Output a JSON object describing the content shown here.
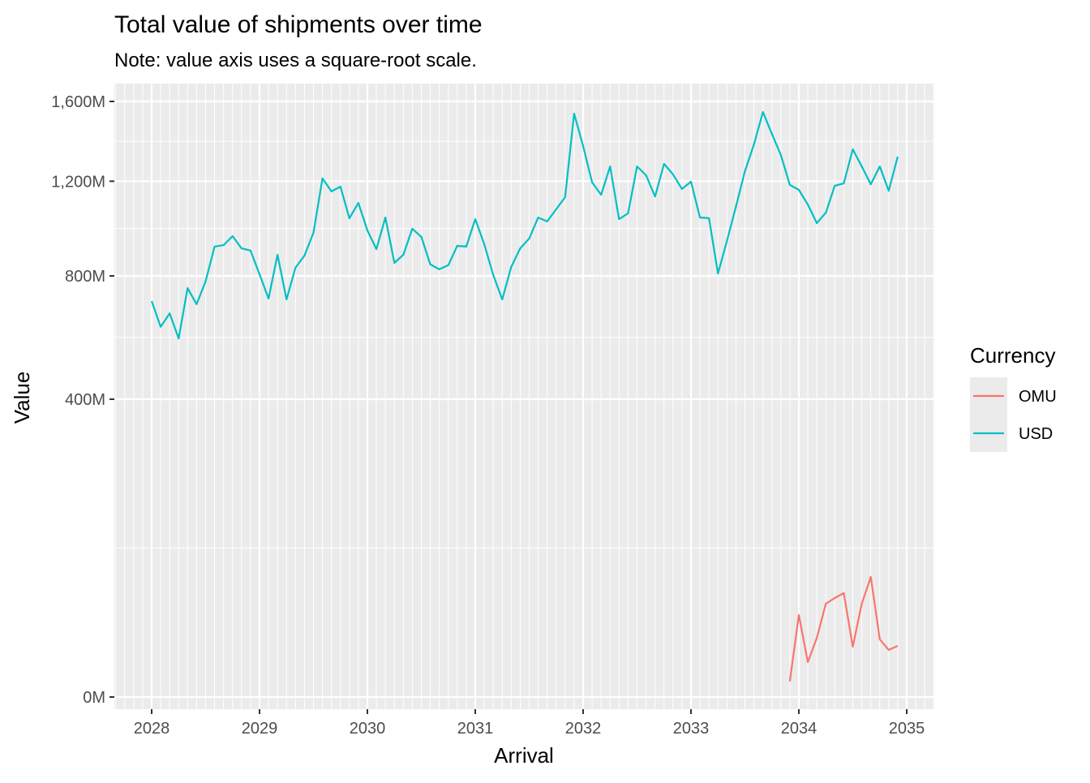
{
  "chart_data": {
    "type": "line",
    "title": "Total value of shipments over time",
    "subtitle": "Note: value axis uses a square-root scale.",
    "xlabel": "Arrival",
    "ylabel": "Value",
    "y_scale": "sqrt",
    "xlim": [
      2027.65,
      2035.27
    ],
    "ylim": [
      0,
      1760
    ],
    "x_ticks": [
      2028,
      2029,
      2030,
      2031,
      2032,
      2033,
      2034,
      2035
    ],
    "x_tick_labels": [
      "2028",
      "2029",
      "2030",
      "2031",
      "2032",
      "2033",
      "2034",
      "2035"
    ],
    "y_ticks": [
      0,
      400,
      800,
      1200,
      1600
    ],
    "y_tick_labels": [
      "0M",
      "400M",
      "800M",
      "1,200M",
      "1,600M"
    ],
    "y_minor_ticks": [
      100,
      583,
      990,
      1393
    ],
    "grid": true,
    "legend": {
      "title": "Currency",
      "position": "right",
      "entries": [
        "OMU",
        "USD"
      ]
    },
    "series": [
      {
        "name": "OMU",
        "color": "#F8766D",
        "start": 2033.9167,
        "step_months": 1,
        "values": [
          1.1,
          30.3,
          5.5,
          15.8,
          39.3,
          44.2,
          48.7,
          11.4,
          39.3,
          65,
          15,
          10,
          11.8
        ]
      },
      {
        "name": "USD",
        "color": "#00BFC4",
        "start": 2028.0,
        "step_months": 1,
        "values": [
          707,
          618,
          664,
          580,
          754,
          696,
          779,
          915,
          921,
          958,
          908,
          899,
          806,
          716,
          882,
          713,
          831,
          879,
          972,
          1213,
          1153,
          1175,
          1034,
          1101,
          982,
          905,
          1037,
          850,
          882,
          989,
          955,
          844,
          825,
          841,
          918,
          915,
          1030,
          925,
          803,
          713,
          834,
          908,
          948,
          1037,
          1020,
          1073,
          1127,
          1535,
          1369,
          1194,
          1138,
          1270,
          1030,
          1055,
          1270,
          1228,
          1130,
          1282,
          1232,
          1164,
          1198,
          1037,
          1034,
          809,
          938,
          1084,
          1247,
          1377,
          1544,
          1430,
          1325,
          1183,
          1160,
          1094,
          1013,
          1058,
          1179,
          1190,
          1353,
          1270,
          1186,
          1270,
          1156,
          1317
        ]
      }
    ]
  }
}
